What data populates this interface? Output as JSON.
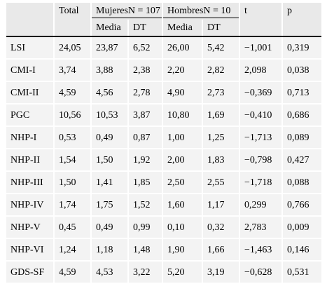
{
  "table": {
    "header_top": {
      "blank": "",
      "total": "Total",
      "mujeres": "MujeresN = 107",
      "hombres": "HombresN = 10",
      "t": "t",
      "p": "p"
    },
    "header_sub": {
      "media1": "Media",
      "dt1": "DT",
      "media2": "Media",
      "dt2": "DT"
    },
    "rows": [
      [
        "LSI",
        "24,05",
        "23,87",
        "6,52",
        "26,00",
        "5,42",
        "−1,001",
        "0,319"
      ],
      [
        "CMI-I",
        "3,74",
        "3,88",
        "2,38",
        "2,20",
        "2,82",
        "2,098",
        "0,038"
      ],
      [
        "CMI-II",
        "4,59",
        "4,56",
        "2,78",
        "4,90",
        "2,73",
        "−0,369",
        "0,713"
      ],
      [
        "PGC",
        "10,56",
        "10,53",
        "3,87",
        "10,80",
        "1,69",
        "−0,410",
        "0,686"
      ],
      [
        "NHP-I",
        "0,53",
        "0,49",
        "0,87",
        "1,00",
        "1,25",
        "−1,713",
        "0,089"
      ],
      [
        "NHP-II",
        "1,54",
        "1,50",
        "1,92",
        "2,00",
        "1,83",
        "−0,798",
        "0,427"
      ],
      [
        "NHP-III",
        "1,50",
        "1,41",
        "1,85",
        "2,50",
        "2,55",
        "−1,718",
        "0,088"
      ],
      [
        "NHP-IV",
        "1,74",
        "1,75",
        "1,52",
        "1,60",
        "1,17",
        "0,299",
        "0,766"
      ],
      [
        "NHP-V",
        "0,45",
        "0,49",
        "0,99",
        "0,10",
        "0,32",
        "2,783",
        "0,009"
      ],
      [
        "NHP-VI",
        "1,24",
        "1,18",
        "1,48",
        "1,90",
        "1,66",
        "−1,463",
        "0,146"
      ],
      [
        "GDS-SF",
        "4,59",
        "4,53",
        "3,22",
        "5,20",
        "3,19",
        "−0,628",
        "0,531"
      ]
    ]
  }
}
